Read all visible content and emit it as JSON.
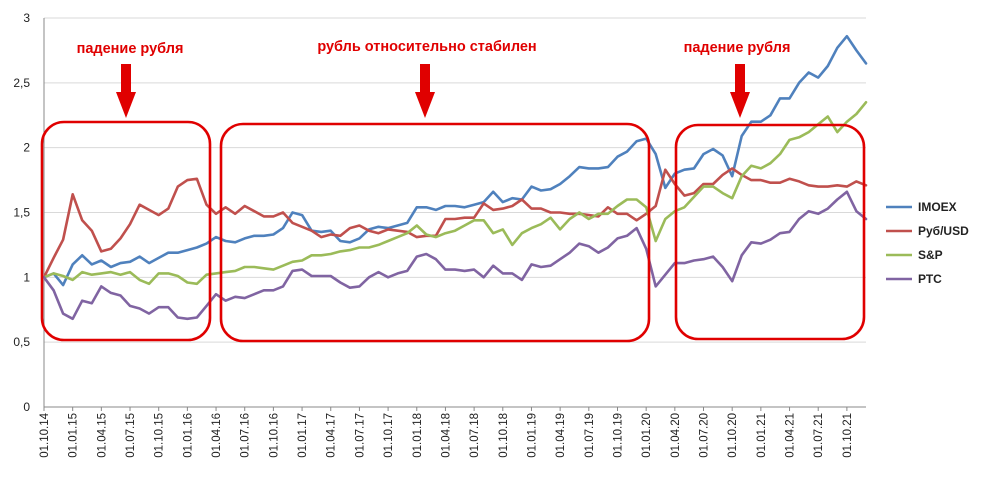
{
  "chart_data": {
    "type": "line",
    "title": "",
    "xlabel": "",
    "ylabel": "",
    "ylim": [
      0,
      3
    ],
    "yticks": [
      "0",
      "0,5",
      "1",
      "1,5",
      "2",
      "2,5",
      "3"
    ],
    "grid": "horizontal",
    "legend_position": "right",
    "x": [
      "01.10.14",
      "01.11.14",
      "01.12.14",
      "01.01.15",
      "01.02.15",
      "01.03.15",
      "01.04.15",
      "01.05.15",
      "01.06.15",
      "01.07.15",
      "01.08.15",
      "01.09.15",
      "01.10.15",
      "01.11.15",
      "01.12.15",
      "01.01.16",
      "01.02.16",
      "01.03.16",
      "01.04.16",
      "01.05.16",
      "01.06.16",
      "01.07.16",
      "01.08.16",
      "01.09.16",
      "01.10.16",
      "01.11.16",
      "01.12.16",
      "01.01.17",
      "01.02.17",
      "01.03.17",
      "01.04.17",
      "01.05.17",
      "01.06.17",
      "01.07.17",
      "01.08.17",
      "01.09.17",
      "01.10.17",
      "01.11.17",
      "01.12.17",
      "01.01.18",
      "01.02.18",
      "01.03.18",
      "01.04.18",
      "01.05.18",
      "01.06.18",
      "01.07.18",
      "01.08.18",
      "01.09.18",
      "01.10.18",
      "01.11.18",
      "01.12.18",
      "01.01.19",
      "01.02.19",
      "01.03.19",
      "01.04.19",
      "01.05.19",
      "01.06.19",
      "01.07.19",
      "01.08.19",
      "01.09.19",
      "01.10.19",
      "01.11.19",
      "01.12.19",
      "01.01.20",
      "01.02.20",
      "01.03.20",
      "01.04.20",
      "01.05.20",
      "01.06.20",
      "01.07.20",
      "01.08.20",
      "01.09.20",
      "01.10.20",
      "01.11.20",
      "01.12.20",
      "01.01.21",
      "01.02.21",
      "01.03.21",
      "01.04.21",
      "01.05.21",
      "01.06.21",
      "01.07.21",
      "01.08.21",
      "01.09.21",
      "01.10.21",
      "01.11.21",
      "01.12.21"
    ],
    "xtick_labels": [
      "01.10.14",
      "01.01.15",
      "01.04.15",
      "01.07.15",
      "01.10.15",
      "01.01.16",
      "01.04.16",
      "01.07.16",
      "01.10.16",
      "01.01.17",
      "01.04.17",
      "01.07.17",
      "01.10.17",
      "01.01.18",
      "01.04.18",
      "01.07.18",
      "01.10.18",
      "01.01.19",
      "01.04.19",
      "01.07.19",
      "01.10.19",
      "01.01.20",
      "01.04.20",
      "01.07.20",
      "01.10.20",
      "01.01.21",
      "01.04.21",
      "01.07.21",
      "01.10.21"
    ],
    "series": [
      {
        "name": "IMOEX",
        "color": "#4f81bd",
        "values": [
          1.0,
          1.03,
          0.94,
          1.1,
          1.17,
          1.1,
          1.13,
          1.08,
          1.11,
          1.12,
          1.16,
          1.11,
          1.15,
          1.19,
          1.19,
          1.21,
          1.23,
          1.26,
          1.31,
          1.28,
          1.27,
          1.3,
          1.32,
          1.32,
          1.33,
          1.38,
          1.5,
          1.48,
          1.36,
          1.35,
          1.36,
          1.28,
          1.27,
          1.3,
          1.37,
          1.39,
          1.38,
          1.4,
          1.42,
          1.54,
          1.54,
          1.52,
          1.55,
          1.55,
          1.54,
          1.56,
          1.58,
          1.66,
          1.58,
          1.61,
          1.6,
          1.7,
          1.67,
          1.68,
          1.72,
          1.78,
          1.85,
          1.84,
          1.84,
          1.85,
          1.93,
          1.97,
          2.05,
          2.07,
          1.95,
          1.69,
          1.8,
          1.83,
          1.84,
          1.95,
          1.99,
          1.94,
          1.78,
          2.09,
          2.2,
          2.2,
          2.25,
          2.38,
          2.38,
          2.5,
          2.58,
          2.54,
          2.63,
          2.77,
          2.86,
          2.75,
          2.65
        ]
      },
      {
        "name": "Руб/USD",
        "color": "#c0504d",
        "values": [
          1.0,
          1.15,
          1.29,
          1.64,
          1.44,
          1.36,
          1.2,
          1.22,
          1.3,
          1.41,
          1.56,
          1.52,
          1.48,
          1.53,
          1.7,
          1.75,
          1.76,
          1.56,
          1.49,
          1.54,
          1.49,
          1.55,
          1.51,
          1.47,
          1.47,
          1.5,
          1.42,
          1.39,
          1.36,
          1.31,
          1.33,
          1.32,
          1.38,
          1.4,
          1.36,
          1.34,
          1.37,
          1.36,
          1.35,
          1.31,
          1.32,
          1.32,
          1.45,
          1.45,
          1.46,
          1.46,
          1.57,
          1.52,
          1.53,
          1.55,
          1.6,
          1.53,
          1.53,
          1.5,
          1.5,
          1.49,
          1.49,
          1.48,
          1.47,
          1.54,
          1.49,
          1.49,
          1.44,
          1.49,
          1.55,
          1.83,
          1.72,
          1.63,
          1.65,
          1.72,
          1.72,
          1.79,
          1.84,
          1.79,
          1.75,
          1.75,
          1.73,
          1.73,
          1.76,
          1.74,
          1.71,
          1.7,
          1.7,
          1.71,
          1.7,
          1.74,
          1.71
        ]
      },
      {
        "name": "S&P",
        "color": "#9bbb59",
        "values": [
          1.0,
          1.03,
          1.01,
          0.98,
          1.04,
          1.02,
          1.03,
          1.04,
          1.02,
          1.04,
          0.98,
          0.95,
          1.03,
          1.03,
          1.01,
          0.96,
          0.95,
          1.02,
          1.03,
          1.04,
          1.05,
          1.08,
          1.08,
          1.07,
          1.06,
          1.09,
          1.12,
          1.13,
          1.17,
          1.17,
          1.18,
          1.2,
          1.21,
          1.23,
          1.23,
          1.25,
          1.28,
          1.31,
          1.34,
          1.4,
          1.33,
          1.31,
          1.34,
          1.36,
          1.4,
          1.44,
          1.44,
          1.34,
          1.37,
          1.25,
          1.34,
          1.38,
          1.41,
          1.46,
          1.37,
          1.45,
          1.5,
          1.45,
          1.49,
          1.49,
          1.55,
          1.6,
          1.6,
          1.54,
          1.28,
          1.45,
          1.51,
          1.54,
          1.62,
          1.7,
          1.7,
          1.65,
          1.61,
          1.78,
          1.86,
          1.84,
          1.88,
          1.95,
          2.06,
          2.08,
          2.12,
          2.18,
          2.24,
          2.12,
          2.2,
          2.26,
          2.35
        ]
      },
      {
        "name": "РТС",
        "color": "#8064a2",
        "values": [
          1.0,
          0.9,
          0.72,
          0.68,
          0.82,
          0.8,
          0.93,
          0.88,
          0.86,
          0.78,
          0.76,
          0.72,
          0.77,
          0.77,
          0.69,
          0.68,
          0.69,
          0.78,
          0.87,
          0.82,
          0.85,
          0.84,
          0.87,
          0.9,
          0.9,
          0.93,
          1.05,
          1.06,
          1.01,
          1.01,
          1.01,
          0.96,
          0.92,
          0.93,
          1.0,
          1.04,
          1.0,
          1.03,
          1.05,
          1.16,
          1.18,
          1.14,
          1.06,
          1.06,
          1.05,
          1.06,
          1.0,
          1.09,
          1.03,
          1.03,
          0.98,
          1.1,
          1.08,
          1.09,
          1.14,
          1.19,
          1.26,
          1.24,
          1.19,
          1.23,
          1.3,
          1.32,
          1.38,
          1.22,
          0.93,
          1.02,
          1.11,
          1.11,
          1.13,
          1.14,
          1.16,
          1.08,
          0.97,
          1.17,
          1.27,
          1.26,
          1.29,
          1.34,
          1.35,
          1.45,
          1.51,
          1.49,
          1.53,
          1.6,
          1.66,
          1.51,
          1.45
        ]
      }
    ],
    "annotations": [
      {
        "text": "падение рубля",
        "color": "#e00000"
      },
      {
        "text": "рубль относительно стабилен",
        "color": "#e00000"
      },
      {
        "text": "падение рубля",
        "color": "#e00000"
      }
    ]
  }
}
